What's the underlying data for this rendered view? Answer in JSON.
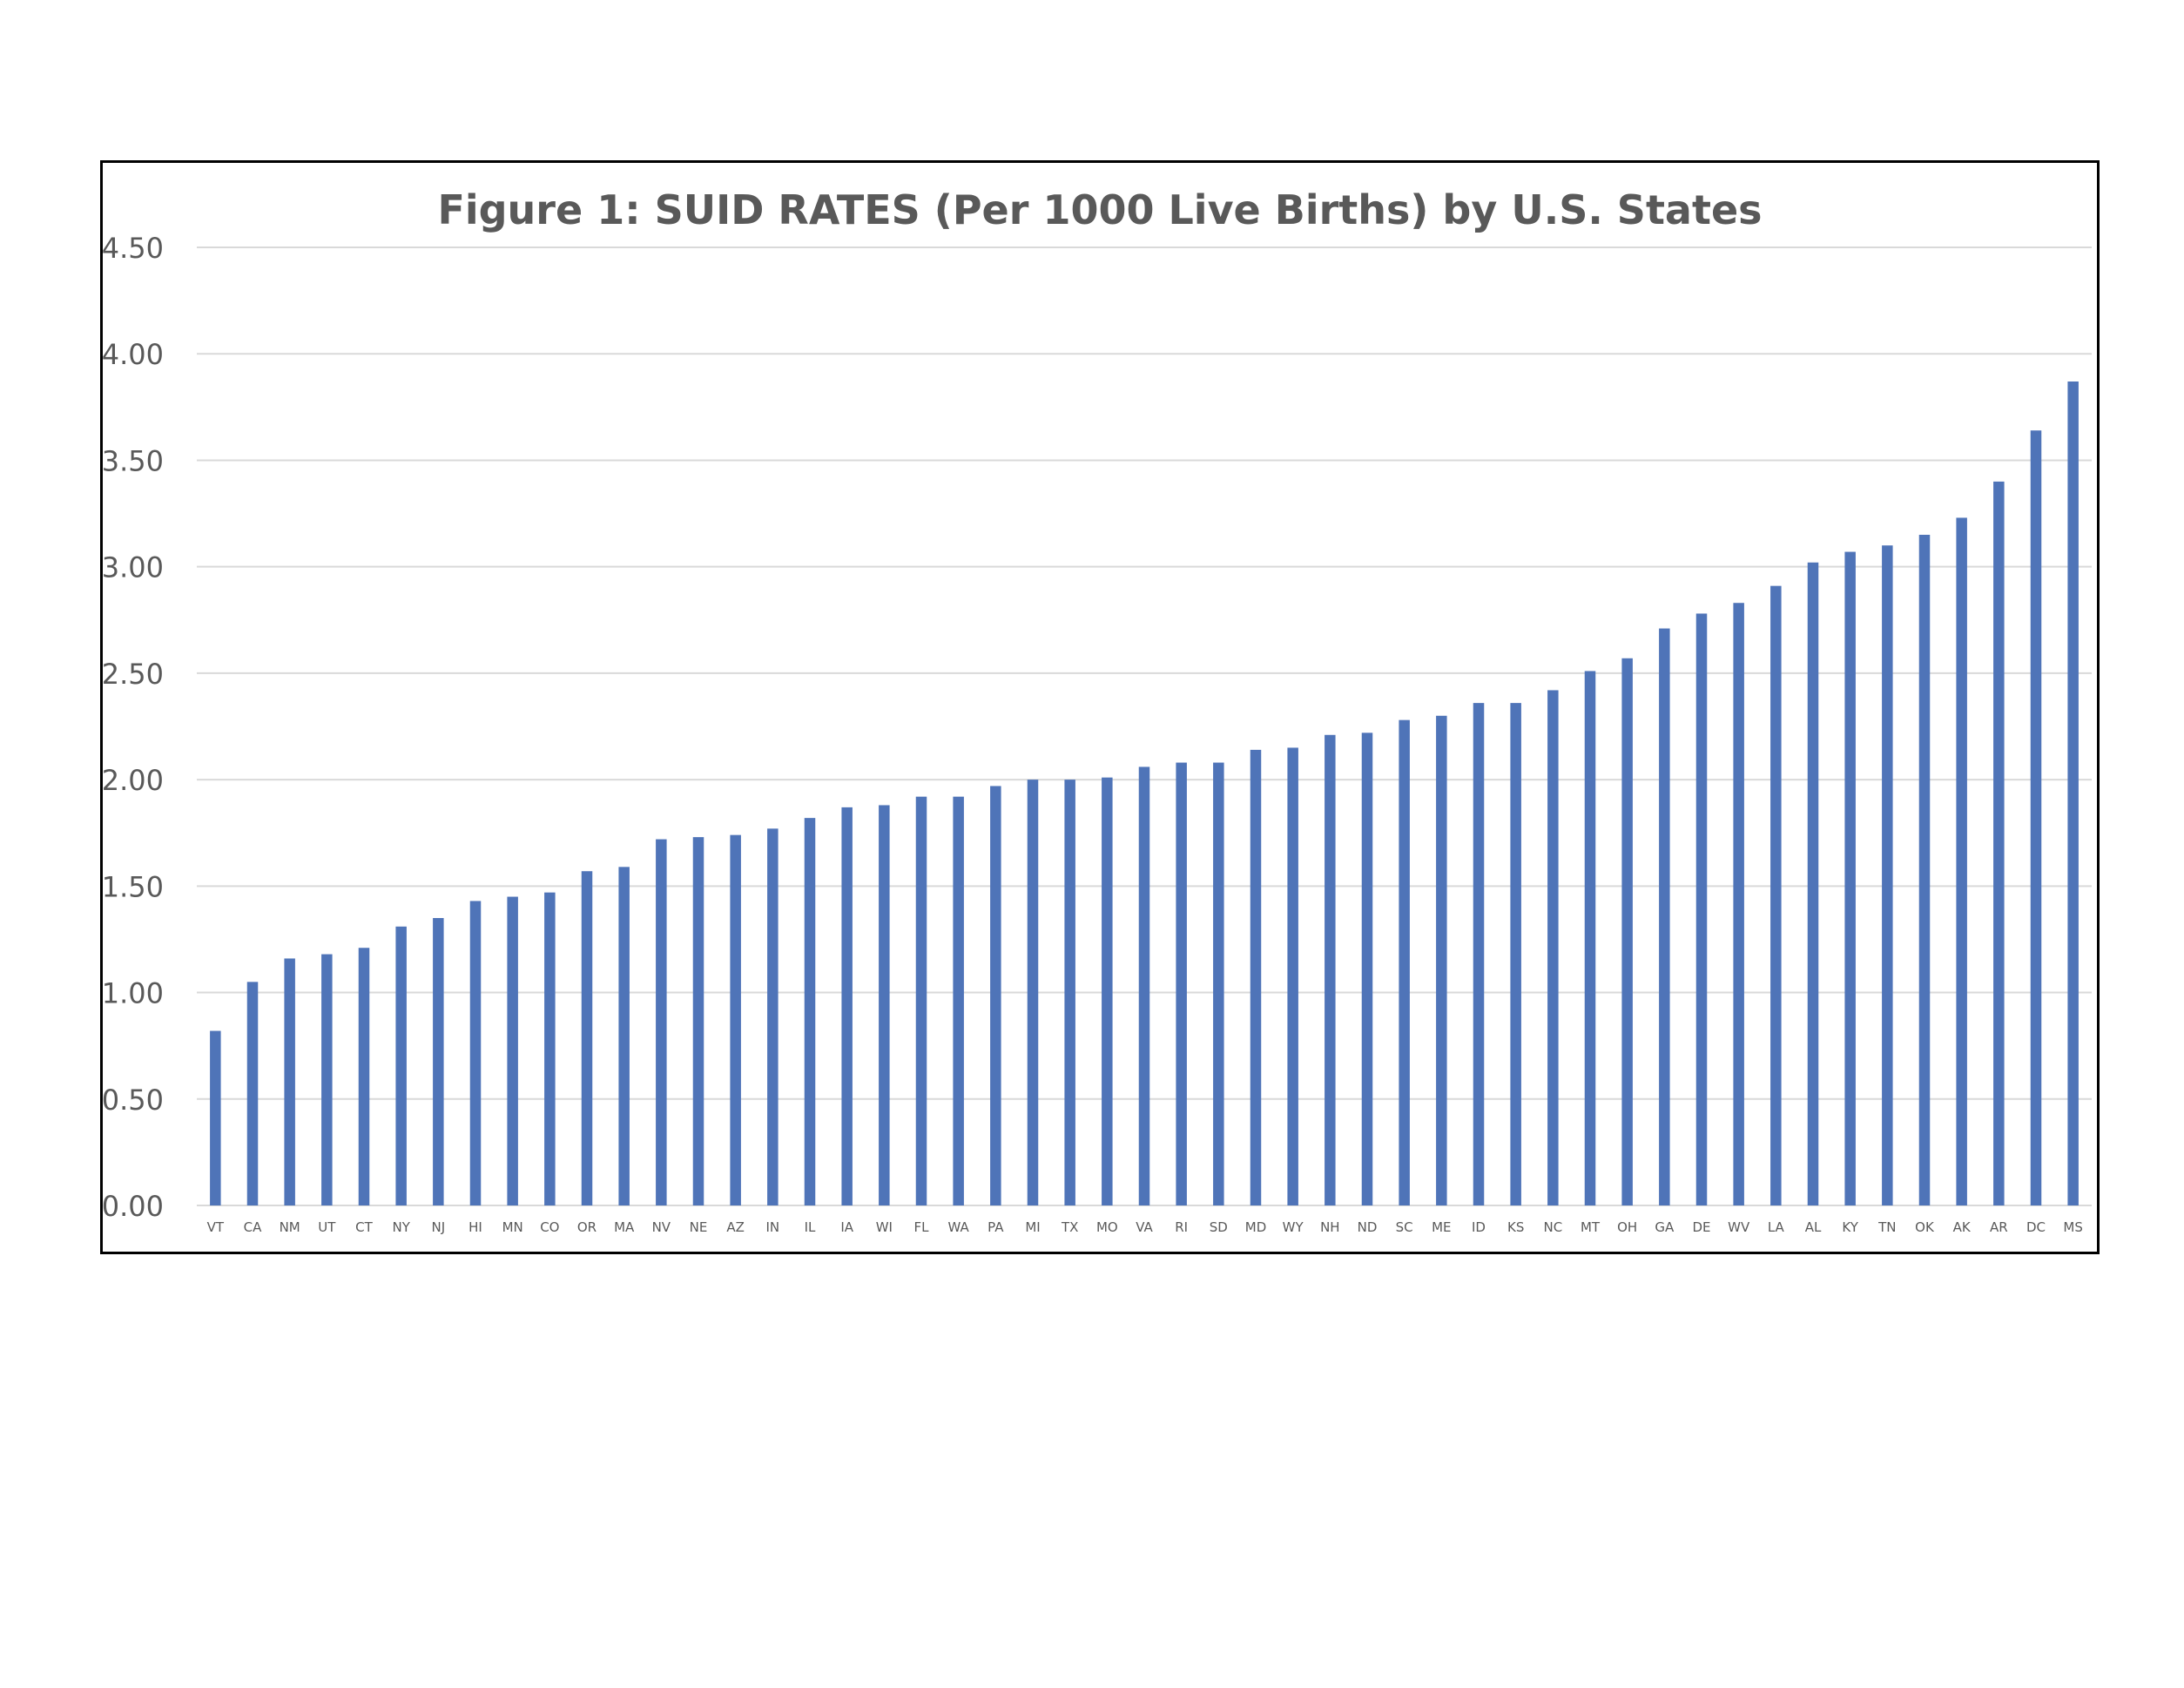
{
  "chart_data": {
    "type": "bar",
    "title": "Figure 1: SUID RATES (Per 1000 Live Births) by U.S. States",
    "xlabel": "",
    "ylabel": "",
    "ylim": [
      0,
      4.5
    ],
    "y_ticks": [
      "0.00",
      "0.50",
      "1.00",
      "1.50",
      "2.00",
      "2.50",
      "3.00",
      "3.50",
      "4.00",
      "4.50"
    ],
    "y_tick_values": [
      0,
      0.5,
      1,
      1.5,
      2,
      2.5,
      3,
      3.5,
      4,
      4.5
    ],
    "grid": true,
    "legend": "none",
    "bar_color": "#4f74b8",
    "categories": [
      "VT",
      "CA",
      "NM",
      "UT",
      "CT",
      "NY",
      "NJ",
      "HI",
      "MN",
      "CO",
      "OR",
      "MA",
      "NV",
      "NE",
      "AZ",
      "IN",
      "IL",
      "IA",
      "WI",
      "FL",
      "WA",
      "PA",
      "MI",
      "TX",
      "MO",
      "VA",
      "RI",
      "SD",
      "MD",
      "WY",
      "NH",
      "ND",
      "SC",
      "ME",
      "ID",
      "KS",
      "NC",
      "MT",
      "OH",
      "GA",
      "DE",
      "WV",
      "LA",
      "AL",
      "KY",
      "TN",
      "OK",
      "AK",
      "AR",
      "DC",
      "MS"
    ],
    "values": [
      0.82,
      1.05,
      1.16,
      1.18,
      1.21,
      1.31,
      1.35,
      1.43,
      1.45,
      1.47,
      1.57,
      1.59,
      1.72,
      1.73,
      1.74,
      1.77,
      1.82,
      1.87,
      1.88,
      1.92,
      1.92,
      1.97,
      2.0,
      2.0,
      2.01,
      2.06,
      2.08,
      2.08,
      2.14,
      2.15,
      2.21,
      2.22,
      2.28,
      2.3,
      2.36,
      2.36,
      2.42,
      2.51,
      2.57,
      2.71,
      2.78,
      2.83,
      2.91,
      3.02,
      3.07,
      3.1,
      3.15,
      3.23,
      3.4,
      3.64,
      3.87
    ]
  }
}
